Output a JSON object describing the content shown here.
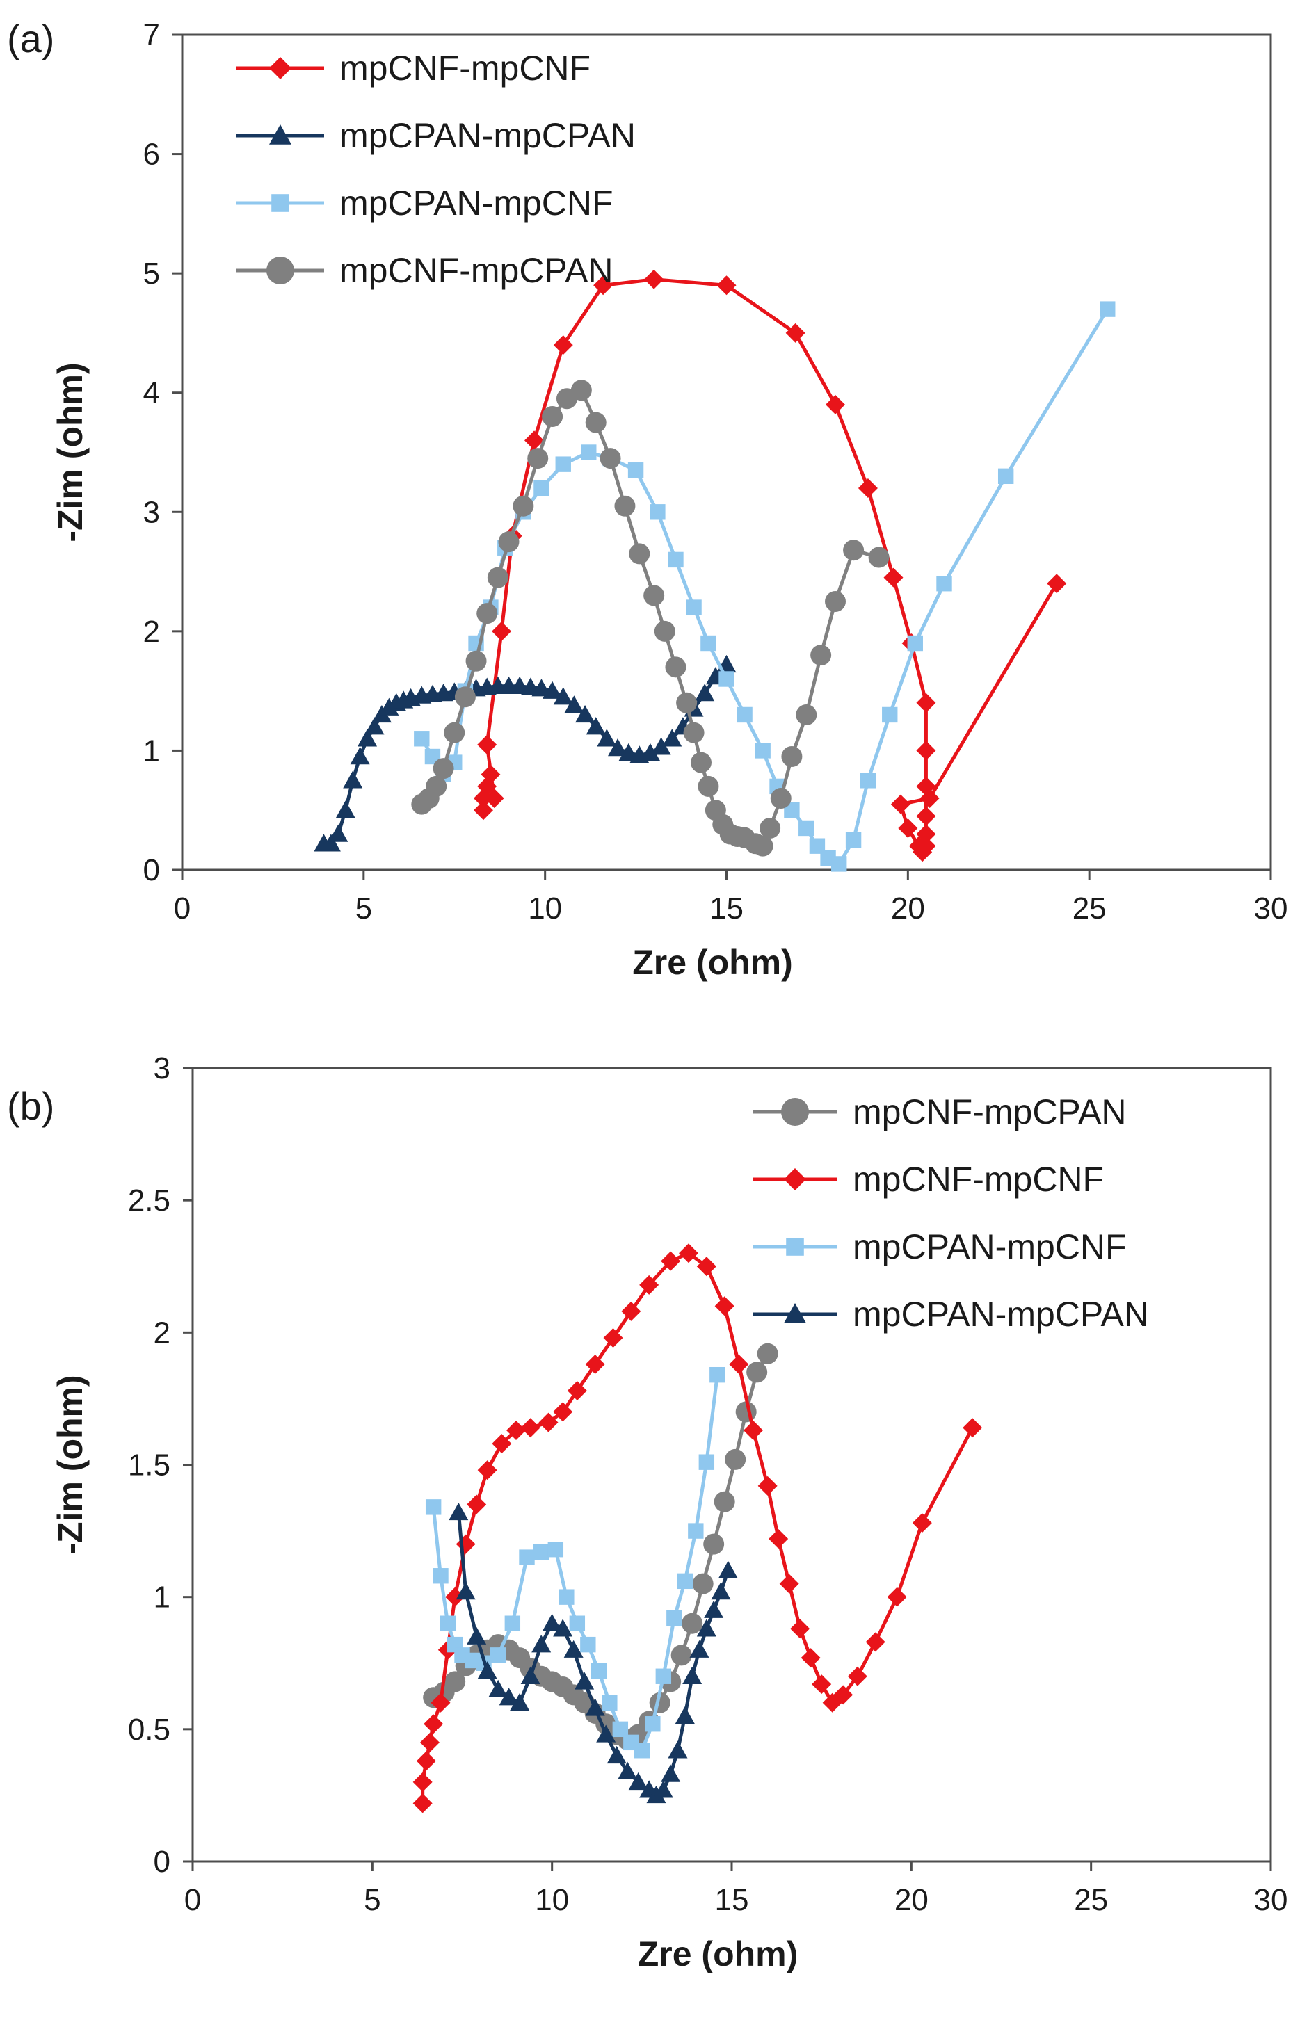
{
  "chart_data": [
    {
      "panel_label": "(a)",
      "type": "scatter",
      "xlabel": "Zre (ohm)",
      "ylabel": "-Zim (ohm)",
      "xlim": [
        0,
        30
      ],
      "ylim": [
        0,
        7
      ],
      "x_ticks": [
        0,
        5,
        10,
        15,
        20,
        25,
        30
      ],
      "y_ticks": [
        0,
        1,
        2,
        3,
        4,
        5,
        6,
        7
      ],
      "legend_position": "top-left",
      "series": [
        {
          "name": "mpCNF-mpCNF",
          "color": "#e8141a",
          "marker": "diamond",
          "x": [
            8.3,
            8.3,
            8.4,
            8.5,
            8.6,
            8.4,
            8.8,
            9.1,
            9.7,
            10.5,
            11.6,
            13.0,
            15.0,
            16.9,
            18.0,
            18.9,
            19.6,
            20.1,
            20.5,
            20.5,
            20.5,
            20.5,
            20.5,
            20.5,
            20.4,
            20.3,
            20.0,
            19.8,
            20.6,
            24.1
          ],
          "y": [
            0.5,
            0.6,
            0.7,
            0.8,
            0.6,
            1.05,
            2.0,
            2.8,
            3.6,
            4.4,
            4.9,
            4.95,
            4.9,
            4.5,
            3.9,
            3.2,
            2.45,
            1.9,
            1.4,
            1.0,
            0.7,
            0.45,
            0.3,
            0.2,
            0.15,
            0.2,
            0.35,
            0.55,
            0.6,
            2.4
          ]
        },
        {
          "name": "mpCPAN-mpCPAN",
          "color": "#17375e",
          "marker": "triangle",
          "x": [
            3.9,
            4.1,
            4.3,
            4.5,
            4.7,
            4.9,
            5.1,
            5.3,
            5.5,
            5.7,
            5.9,
            6.1,
            6.3,
            6.6,
            6.9,
            7.2,
            7.5,
            7.8,
            8.1,
            8.4,
            8.7,
            9.0,
            9.3,
            9.6,
            9.9,
            10.2,
            10.5,
            10.8,
            11.1,
            11.4,
            11.7,
            12.0,
            12.3,
            12.6,
            12.9,
            13.2,
            13.5,
            13.8,
            14.1,
            14.4,
            14.7,
            15.0
          ],
          "y": [
            0.22,
            0.22,
            0.3,
            0.5,
            0.75,
            0.95,
            1.1,
            1.2,
            1.3,
            1.36,
            1.4,
            1.42,
            1.44,
            1.46,
            1.47,
            1.48,
            1.49,
            1.5,
            1.52,
            1.53,
            1.54,
            1.54,
            1.54,
            1.53,
            1.52,
            1.5,
            1.45,
            1.38,
            1.3,
            1.2,
            1.1,
            1.02,
            0.98,
            0.96,
            0.98,
            1.03,
            1.1,
            1.2,
            1.35,
            1.48,
            1.62,
            1.72
          ]
        },
        {
          "name": "mpCPAN-mpCNF",
          "color": "#8fc7ee",
          "marker": "square",
          "x": [
            6.6,
            6.9,
            7.2,
            7.5,
            7.8,
            8.1,
            8.5,
            8.9,
            9.4,
            9.9,
            10.5,
            11.2,
            11.8,
            12.5,
            13.1,
            13.6,
            14.1,
            14.5,
            15.0,
            15.5,
            16.0,
            16.4,
            16.8,
            17.2,
            17.5,
            17.8,
            18.1,
            18.5,
            18.9,
            19.5,
            20.2,
            21.0,
            22.7,
            25.5
          ],
          "y": [
            1.1,
            0.95,
            0.8,
            0.9,
            1.5,
            1.9,
            2.2,
            2.7,
            3.0,
            3.2,
            3.4,
            3.5,
            3.45,
            3.35,
            3.0,
            2.6,
            2.2,
            1.9,
            1.6,
            1.3,
            1.0,
            0.7,
            0.5,
            0.35,
            0.2,
            0.1,
            0.05,
            0.25,
            0.75,
            1.3,
            1.9,
            2.4,
            3.3,
            4.7
          ]
        },
        {
          "name": "mpCNF-mpCPAN",
          "color": "#808080",
          "marker": "circle",
          "x": [
            6.6,
            6.8,
            7.0,
            7.2,
            7.5,
            7.8,
            8.1,
            8.4,
            8.7,
            9.0,
            9.4,
            9.8,
            10.2,
            10.6,
            11.0,
            11.4,
            11.8,
            12.2,
            12.6,
            13.0,
            13.3,
            13.6,
            13.9,
            14.1,
            14.3,
            14.5,
            14.7,
            14.9,
            15.1,
            15.3,
            15.5,
            15.8,
            16.0,
            16.2,
            16.5,
            16.8,
            17.2,
            17.6,
            18.0,
            18.5,
            19.2
          ],
          "y": [
            0.55,
            0.6,
            0.7,
            0.85,
            1.15,
            1.45,
            1.75,
            2.15,
            2.45,
            2.75,
            3.05,
            3.45,
            3.8,
            3.95,
            4.02,
            3.75,
            3.45,
            3.05,
            2.65,
            2.3,
            2.0,
            1.7,
            1.4,
            1.15,
            0.9,
            0.7,
            0.5,
            0.38,
            0.3,
            0.28,
            0.27,
            0.22,
            0.2,
            0.35,
            0.6,
            0.95,
            1.3,
            1.8,
            2.25,
            2.68,
            2.62
          ]
        }
      ]
    },
    {
      "panel_label": "(b)",
      "type": "scatter",
      "xlabel": "Zre (ohm)",
      "ylabel": "-Zim (ohm)",
      "xlim": [
        0,
        30
      ],
      "ylim": [
        0,
        3
      ],
      "x_ticks": [
        0,
        5,
        10,
        15,
        20,
        25,
        30
      ],
      "y_ticks": [
        0,
        0.5,
        1,
        1.5,
        2,
        2.5,
        3
      ],
      "legend_position": "top-right",
      "series": [
        {
          "name": "mpCNF-mpCPAN",
          "color": "#808080",
          "marker": "circle",
          "x": [
            6.7,
            7.0,
            7.3,
            7.6,
            7.9,
            8.2,
            8.5,
            8.8,
            9.1,
            9.4,
            9.7,
            10.0,
            10.3,
            10.6,
            10.9,
            11.2,
            11.5,
            11.8,
            12.1,
            12.4,
            12.7,
            13.0,
            13.3,
            13.6,
            13.9,
            14.2,
            14.5,
            14.8,
            15.1,
            15.4,
            15.7,
            16.0
          ],
          "y": [
            0.62,
            0.64,
            0.68,
            0.74,
            0.78,
            0.8,
            0.82,
            0.8,
            0.77,
            0.73,
            0.7,
            0.68,
            0.66,
            0.63,
            0.6,
            0.56,
            0.52,
            0.48,
            0.46,
            0.48,
            0.53,
            0.6,
            0.68,
            0.78,
            0.9,
            1.05,
            1.2,
            1.36,
            1.52,
            1.7,
            1.85,
            1.92
          ]
        },
        {
          "name": "mpCNF-mpCNF",
          "color": "#e8141a",
          "marker": "diamond",
          "x": [
            6.4,
            6.4,
            6.5,
            6.6,
            6.7,
            6.9,
            7.1,
            7.3,
            7.6,
            7.9,
            8.2,
            8.6,
            9.0,
            9.4,
            9.9,
            10.3,
            10.7,
            11.2,
            11.7,
            12.2,
            12.7,
            13.3,
            13.8,
            14.3,
            14.8,
            15.2,
            15.6,
            16.0,
            16.3,
            16.6,
            16.9,
            17.2,
            17.5,
            17.8,
            18.1,
            18.5,
            19.0,
            19.6,
            20.3,
            21.7
          ],
          "y": [
            0.22,
            0.3,
            0.38,
            0.45,
            0.52,
            0.6,
            0.8,
            1.0,
            1.2,
            1.35,
            1.48,
            1.58,
            1.63,
            1.64,
            1.66,
            1.7,
            1.78,
            1.88,
            1.98,
            2.08,
            2.18,
            2.27,
            2.3,
            2.25,
            2.1,
            1.88,
            1.63,
            1.42,
            1.22,
            1.05,
            0.88,
            0.77,
            0.67,
            0.6,
            0.63,
            0.7,
            0.83,
            1.0,
            1.28,
            1.64
          ]
        },
        {
          "name": "mpCPAN-mpCNF",
          "color": "#8fc7ee",
          "marker": "square",
          "x": [
            6.7,
            6.9,
            7.1,
            7.3,
            7.5,
            7.8,
            8.1,
            8.5,
            8.9,
            9.3,
            9.7,
            10.1,
            10.4,
            10.7,
            11.0,
            11.3,
            11.6,
            11.9,
            12.2,
            12.5,
            12.8,
            13.1,
            13.4,
            13.7,
            14.0,
            14.3,
            14.6
          ],
          "y": [
            1.34,
            1.08,
            0.9,
            0.82,
            0.78,
            0.76,
            0.75,
            0.78,
            0.9,
            1.15,
            1.17,
            1.18,
            1.0,
            0.9,
            0.82,
            0.72,
            0.6,
            0.5,
            0.45,
            0.42,
            0.52,
            0.7,
            0.92,
            1.06,
            1.25,
            1.51,
            1.84
          ]
        },
        {
          "name": "mpCPAN-mpCPAN",
          "color": "#17375e",
          "marker": "triangle",
          "x": [
            7.4,
            7.6,
            7.9,
            8.2,
            8.5,
            8.8,
            9.1,
            9.4,
            9.7,
            10.0,
            10.3,
            10.6,
            10.9,
            11.2,
            11.5,
            11.8,
            12.1,
            12.4,
            12.7,
            12.9,
            13.1,
            13.3,
            13.5,
            13.7,
            13.9,
            14.1,
            14.3,
            14.5,
            14.7,
            14.9
          ],
          "y": [
            1.32,
            1.02,
            0.85,
            0.72,
            0.65,
            0.62,
            0.6,
            0.7,
            0.82,
            0.9,
            0.88,
            0.8,
            0.68,
            0.58,
            0.48,
            0.4,
            0.34,
            0.3,
            0.27,
            0.25,
            0.27,
            0.33,
            0.42,
            0.55,
            0.7,
            0.8,
            0.88,
            0.95,
            1.02,
            1.1
          ]
        }
      ]
    }
  ]
}
